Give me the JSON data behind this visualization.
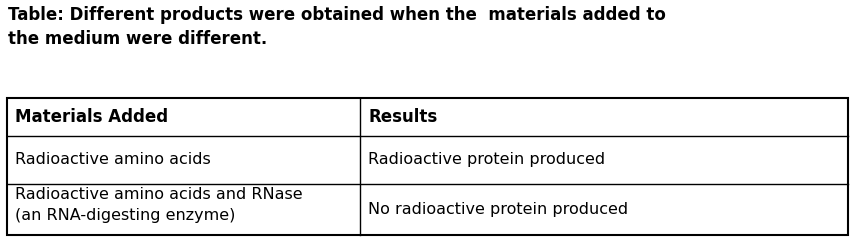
{
  "title_line1": "Table: Different products were obtained when the  materials added to",
  "title_line2": "the medium were different.",
  "col1_header": "Materials Added",
  "col2_header": "Results",
  "row1_col1": "Radioactive amino acids",
  "row1_col2": "Radioactive protein produced",
  "row2_col1": "Radioactive amino acids and RNase\n(an RNA-digesting enzyme)",
  "row2_col2": "No radioactive protein produced",
  "bg_color": "#ffffff",
  "border_color": "#000000",
  "title_fontsize": 12.0,
  "header_fontsize": 12.0,
  "cell_fontsize": 11.5,
  "figwidth": 8.55,
  "figheight": 2.4,
  "dpi": 100
}
